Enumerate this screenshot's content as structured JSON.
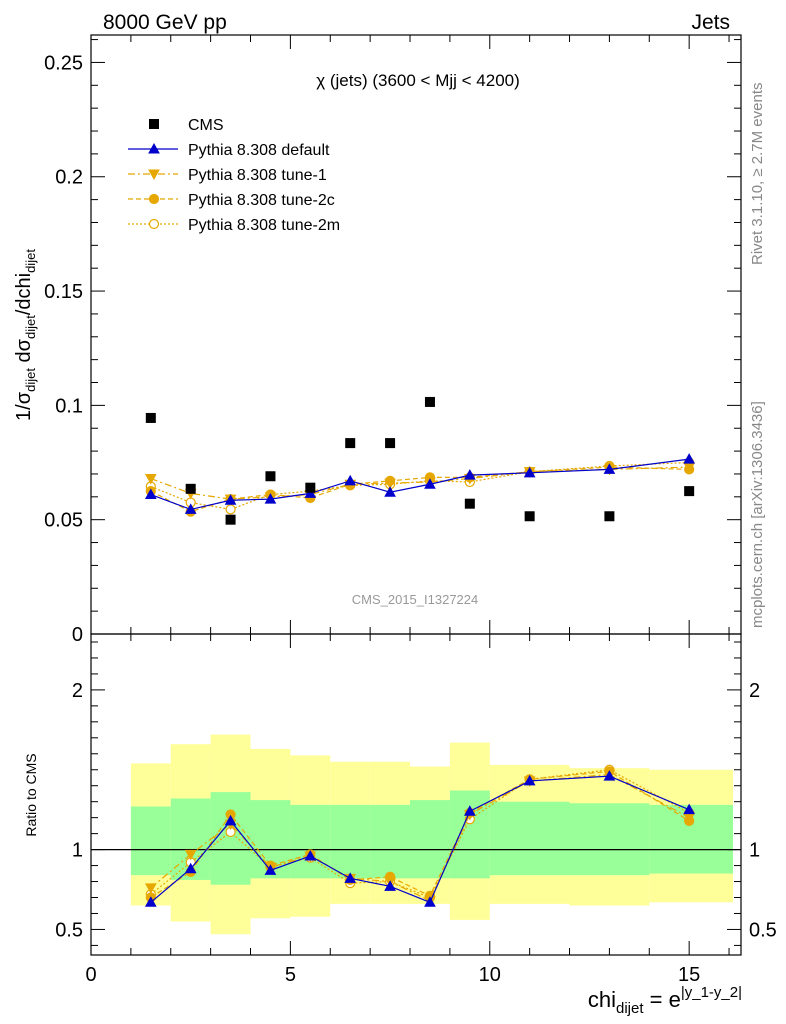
{
  "header": {
    "left": "8000 GeV pp",
    "right": "Jets"
  },
  "side_labels": {
    "rivet": "Rivet 3.1.10, ≥ 2.7M events",
    "mcplots": "mcplots.cern.ch [arXiv:1306.3436]"
  },
  "main_title": "χ (jets) (3600 < Mjj < 4200)",
  "watermark": "CMS_2015_I1327224",
  "ylabel_main": {
    "prefix": "1/σ",
    "sub1": "dijet",
    "mid": " dσ",
    "sub2": "dijet",
    "tail": "/dchi",
    "sub3": "dijet"
  },
  "ylabel_ratio": "Ratio to CMS",
  "xlabel": {
    "base": "chi",
    "sub": "dijet",
    "eq": " = e",
    "sup": "|y_1-y_2|"
  },
  "legend": [
    {
      "label": "CMS",
      "key": "cms"
    },
    {
      "label": "Pythia 8.308 default",
      "key": "default"
    },
    {
      "label": "Pythia 8.308 tune-1",
      "key": "tune1"
    },
    {
      "label": "Pythia 8.308 tune-2c",
      "key": "tune2c"
    },
    {
      "label": "Pythia 8.308 tune-2m",
      "key": "tune2m"
    }
  ],
  "colors": {
    "default": "#0000cc",
    "tune": "#e6a800",
    "band_inner": "#99ff99",
    "band_outer": "#ffff99"
  },
  "chart_data": {
    "type": "scatter",
    "x_range": [
      0,
      16.3
    ],
    "x_ticks": [
      "0",
      "5",
      "10",
      "15"
    ],
    "main": {
      "ylim": [
        0,
        0.262
      ],
      "y_ticks": [
        "0",
        "0.05",
        "0.1",
        "0.15",
        "0.2",
        "0.25"
      ]
    },
    "ratio": {
      "ylim": [
        0.34,
        2.35
      ],
      "y_ticks": [
        "0.5",
        "1",
        "2"
      ]
    },
    "bins": [
      {
        "lo": 1,
        "hi": 2,
        "x": 1.5
      },
      {
        "lo": 2,
        "hi": 3,
        "x": 2.5
      },
      {
        "lo": 3,
        "hi": 4,
        "x": 3.5
      },
      {
        "lo": 4,
        "hi": 5,
        "x": 4.5
      },
      {
        "lo": 5,
        "hi": 6,
        "x": 5.5
      },
      {
        "lo": 6,
        "hi": 7,
        "x": 6.5
      },
      {
        "lo": 7,
        "hi": 8,
        "x": 7.5
      },
      {
        "lo": 8,
        "hi": 9,
        "x": 8.5
      },
      {
        "lo": 9,
        "hi": 10,
        "x": 9.5
      },
      {
        "lo": 10,
        "hi": 12,
        "x": 11
      },
      {
        "lo": 12,
        "hi": 14,
        "x": 13
      },
      {
        "lo": 14,
        "hi": 16.1,
        "x": 15
      }
    ],
    "cms": [
      0.0945,
      0.0635,
      0.05,
      0.069,
      0.064,
      0.0835,
      0.0835,
      0.1015,
      0.057,
      0.0515,
      0.0515,
      0.0625
    ],
    "band_inner": [
      [
        0.84,
        1.27
      ],
      [
        0.81,
        1.32
      ],
      [
        0.78,
        1.36
      ],
      [
        0.82,
        1.31
      ],
      [
        0.82,
        1.28
      ],
      [
        0.82,
        1.28
      ],
      [
        0.82,
        1.28
      ],
      [
        0.82,
        1.31
      ],
      [
        0.82,
        1.37
      ],
      [
        0.84,
        1.3
      ],
      [
        0.84,
        1.29
      ],
      [
        0.85,
        1.28
      ]
    ],
    "band_outer": [
      [
        0.65,
        1.54
      ],
      [
        0.55,
        1.66
      ],
      [
        0.47,
        1.72
      ],
      [
        0.57,
        1.63
      ],
      [
        0.58,
        1.59
      ],
      [
        0.66,
        1.55
      ],
      [
        0.66,
        1.55
      ],
      [
        0.66,
        1.52
      ],
      [
        0.56,
        1.67
      ],
      [
        0.66,
        1.53
      ],
      [
        0.65,
        1.51
      ],
      [
        0.67,
        1.5
      ]
    ],
    "series": [
      {
        "name": "Pythia 8.308 default",
        "key": "default",
        "main": [
          0.061,
          0.0545,
          0.0585,
          0.059,
          0.0615,
          0.067,
          0.062,
          0.0655,
          0.0695,
          0.0705,
          0.072,
          0.0765
        ],
        "ratio": [
          0.67,
          0.88,
          1.18,
          0.87,
          0.96,
          0.82,
          0.77,
          0.67,
          1.24,
          1.43,
          1.46,
          1.25
        ]
      },
      {
        "name": "Pythia 8.308 tune-1",
        "key": "tune1",
        "main": [
          0.068,
          0.0615,
          0.059,
          0.06,
          0.061,
          0.0655,
          0.066,
          0.0665,
          0.068,
          0.071,
          0.072,
          0.073
        ],
        "ratio": [
          0.76,
          0.97,
          1.16,
          0.89,
          0.96,
          0.82,
          0.8,
          0.68,
          1.22,
          1.43,
          1.47,
          1.2
        ]
      },
      {
        "name": "Pythia 8.308 tune-2c",
        "key": "tune2c",
        "main": [
          0.0625,
          0.0535,
          0.059,
          0.061,
          0.0595,
          0.0655,
          0.067,
          0.0685,
          0.0685,
          0.071,
          0.073,
          0.072
        ],
        "ratio": [
          0.7,
          0.86,
          1.22,
          0.9,
          0.97,
          0.81,
          0.83,
          0.71,
          1.23,
          1.44,
          1.49,
          1.18
        ]
      },
      {
        "name": "Pythia 8.308 tune-2m",
        "key": "tune2m",
        "main": [
          0.0645,
          0.0575,
          0.0545,
          0.061,
          0.0625,
          0.065,
          0.0655,
          0.067,
          0.0665,
          0.071,
          0.0735,
          0.075
        ],
        "ratio": [
          0.72,
          0.92,
          1.11,
          0.89,
          0.95,
          0.79,
          0.8,
          0.7,
          1.19,
          1.44,
          1.5,
          1.23
        ]
      }
    ]
  }
}
